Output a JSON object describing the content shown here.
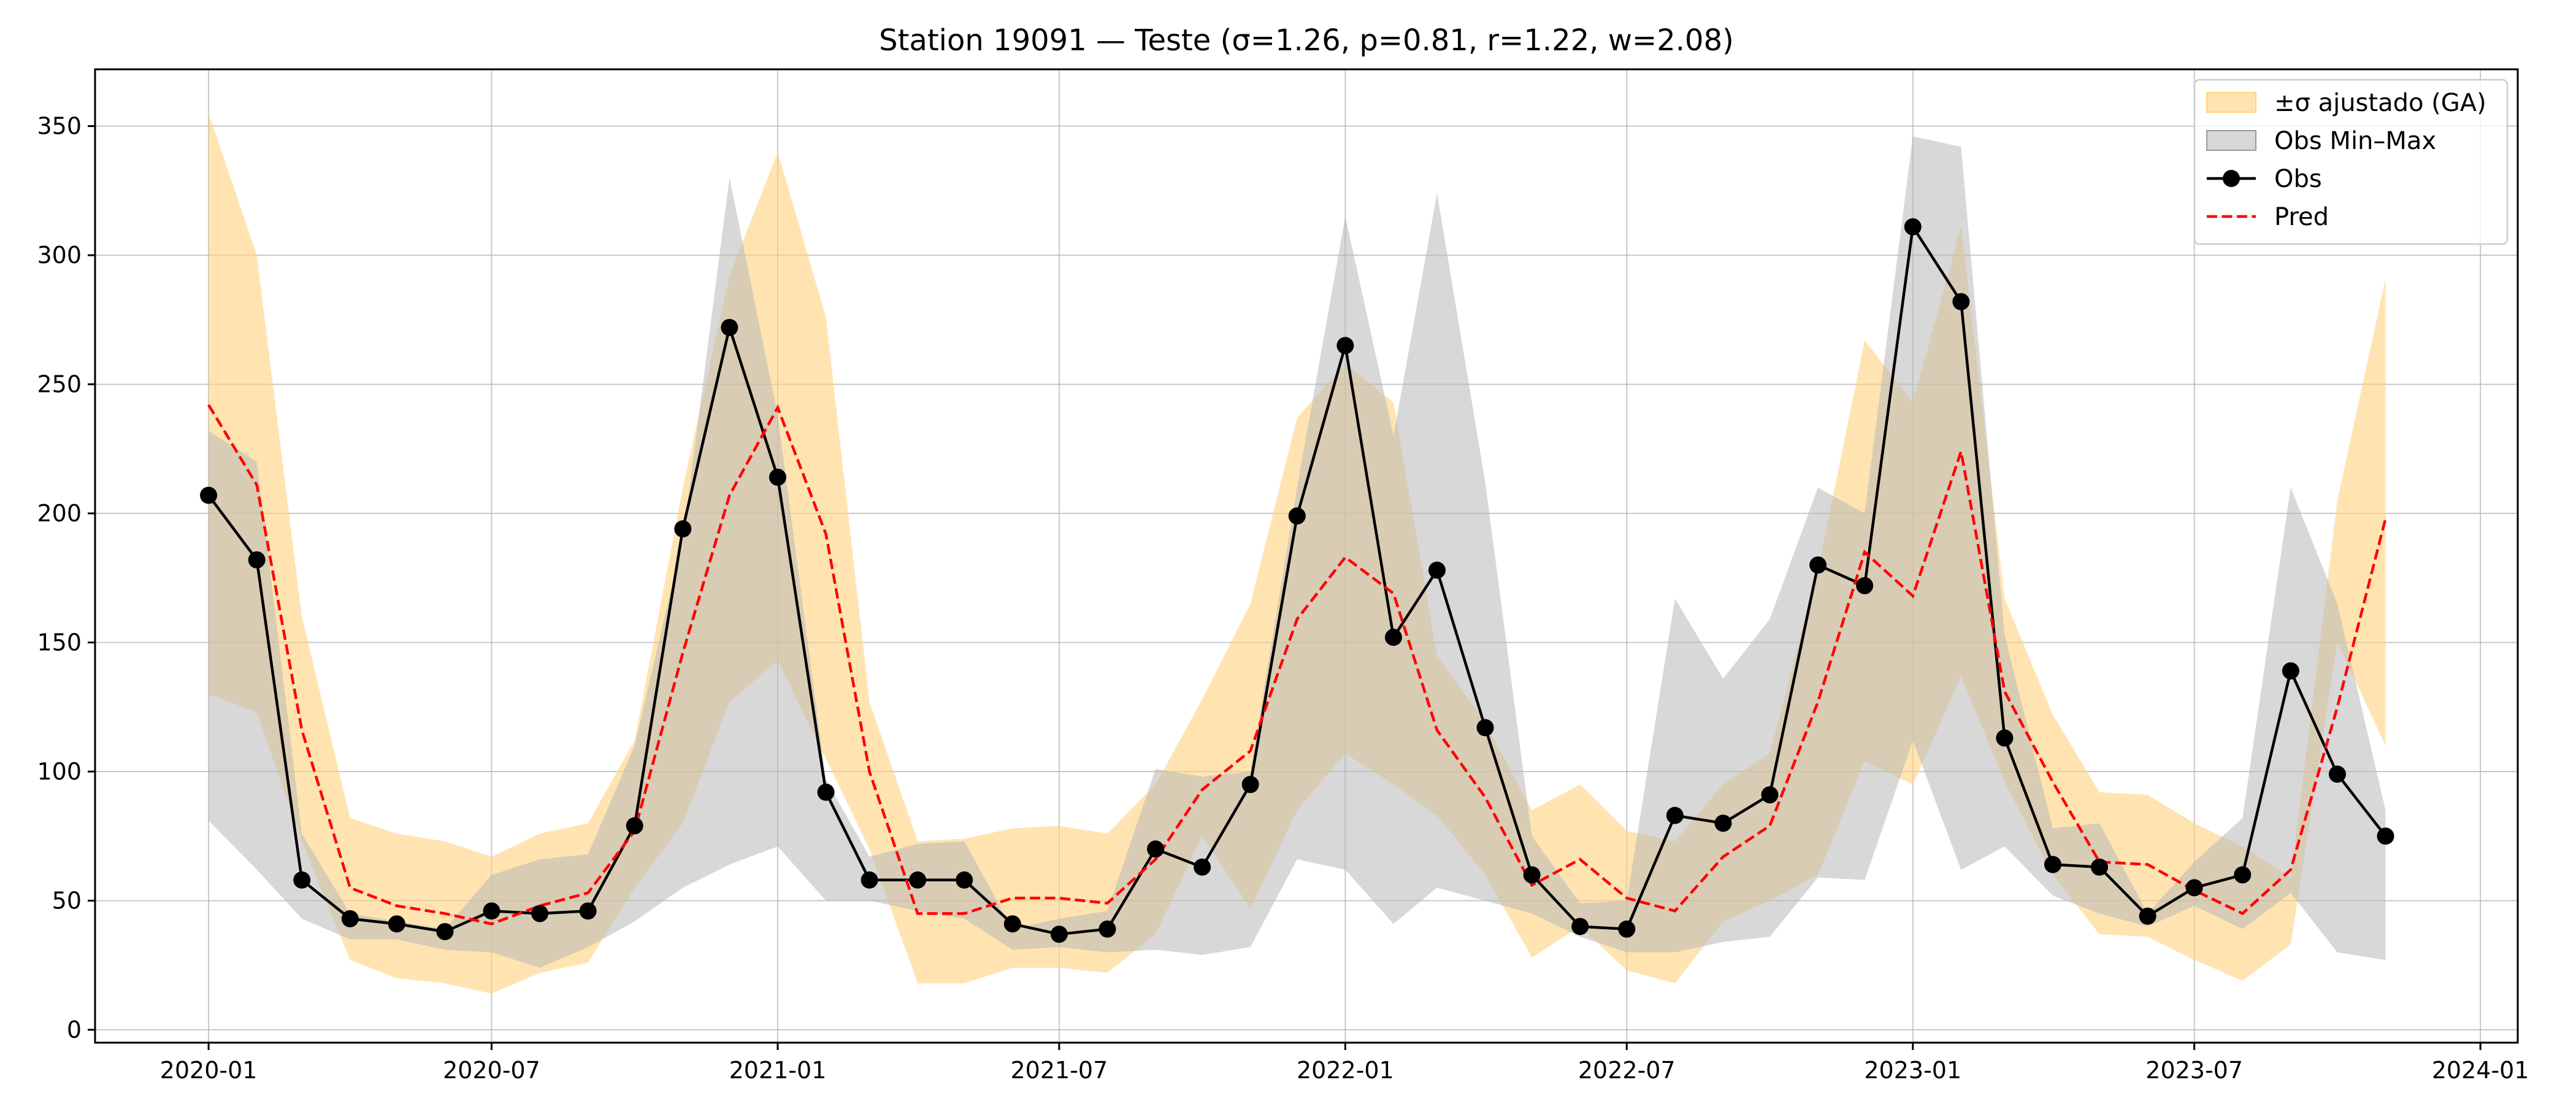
{
  "chart_data": {
    "type": "line",
    "title": "Station 19091 — Teste (σ=1.26, p=0.81, r=1.22, w=2.08)",
    "xlabel": "",
    "ylabel": "",
    "x_ticks": [
      "2020-01",
      "2020-07",
      "2021-01",
      "2021-07",
      "2022-01",
      "2022-07",
      "2023-01",
      "2023-07",
      "2024-01"
    ],
    "y_ticks": [
      0,
      50,
      100,
      150,
      200,
      250,
      300,
      350
    ],
    "xlim": [
      "2019-10-20",
      "2024-01-25"
    ],
    "ylim": [
      -5,
      372
    ],
    "grid": true,
    "legend_position": "top-right",
    "colors": {
      "sigma_band": "#ffd27f",
      "minmax_band": "#b8b8b8",
      "obs": "#000000",
      "pred": "#ff0000"
    },
    "dates": [
      "2020-01",
      "2020-02",
      "2020-03",
      "2020-04",
      "2020-05",
      "2020-06",
      "2020-07",
      "2020-08",
      "2020-09",
      "2020-10",
      "2020-11",
      "2020-12",
      "2021-01",
      "2021-02",
      "2021-03",
      "2021-04",
      "2021-05",
      "2021-06",
      "2021-07",
      "2021-08",
      "2021-09",
      "2021-10",
      "2021-11",
      "2021-12",
      "2022-01",
      "2022-02",
      "2022-03",
      "2022-04",
      "2022-05",
      "2022-06",
      "2022-07",
      "2022-08",
      "2022-09",
      "2022-10",
      "2022-11",
      "2022-12",
      "2023-01",
      "2023-02",
      "2023-03",
      "2023-04",
      "2023-05",
      "2023-06",
      "2023-07",
      "2023-08",
      "2023-09",
      "2023-10",
      "2023-11"
    ],
    "series": [
      {
        "name": "±σ ajustado (GA)",
        "kind": "band",
        "lower": [
          130,
          123,
          73,
          27,
          20,
          18,
          14,
          22,
          26,
          55,
          80,
          127,
          143,
          105,
          70,
          18,
          18,
          24,
          24,
          22,
          37,
          75,
          47,
          85,
          107,
          95,
          83,
          60,
          28,
          40,
          23,
          18,
          42,
          50,
          60,
          104,
          95,
          137,
          96,
          60,
          37,
          36,
          27,
          19,
          33,
          150,
          110
        ],
        "upper": [
          355,
          300,
          160,
          82,
          76,
          73,
          67,
          76,
          80,
          112,
          210,
          292,
          340,
          276,
          127,
          73,
          74,
          78,
          79,
          76,
          95,
          128,
          165,
          237,
          258,
          243,
          145,
          119,
          85,
          95,
          77,
          73,
          95,
          107,
          178,
          267,
          243,
          311,
          167,
          122,
          92,
          91,
          80,
          71,
          59,
          205,
          291
        ]
      },
      {
        "name": "Obs Min–Max",
        "kind": "band",
        "lower": [
          81,
          62,
          43,
          35,
          35,
          31,
          30,
          24,
          32,
          42,
          55,
          64,
          71,
          50,
          50,
          46,
          43,
          31,
          32,
          30,
          31,
          29,
          32,
          66,
          62,
          41,
          55,
          50,
          45,
          36,
          30,
          30,
          34,
          36,
          59,
          58,
          112,
          62,
          71,
          52,
          45,
          40,
          48,
          39,
          53,
          30,
          27
        ],
        "upper": [
          232,
          220,
          76,
          45,
          42,
          39,
          60,
          66,
          68,
          110,
          190,
          330,
          238,
          97,
          67,
          72,
          73,
          39,
          43,
          46,
          101,
          98,
          100,
          210,
          315,
          230,
          324,
          212,
          75,
          49,
          50,
          167,
          136,
          159,
          210,
          200,
          346,
          342,
          153,
          78,
          80,
          45,
          65,
          82,
          210,
          165,
          85
        ]
      },
      {
        "name": "Obs",
        "kind": "line",
        "values": [
          207,
          182,
          58,
          43,
          41,
          38,
          46,
          45,
          46,
          79,
          194,
          272,
          214,
          92,
          58,
          58,
          58,
          41,
          37,
          39,
          70,
          63,
          95,
          199,
          265,
          152,
          178,
          117,
          60,
          40,
          39,
          83,
          80,
          91,
          180,
          172,
          311,
          282,
          113,
          64,
          63,
          44,
          55,
          60,
          139,
          99,
          75
        ]
      },
      {
        "name": "Pred",
        "kind": "dashed",
        "values": [
          242,
          211,
          116,
          55,
          48,
          45,
          41,
          48,
          53,
          77,
          146,
          207,
          241,
          192,
          100,
          45,
          45,
          51,
          51,
          49,
          66,
          93,
          108,
          159,
          183,
          169,
          116,
          90,
          56,
          66,
          51,
          46,
          67,
          79,
          127,
          185,
          168,
          224,
          131,
          96,
          65,
          64,
          54,
          45,
          62,
          125,
          198
        ]
      }
    ]
  }
}
